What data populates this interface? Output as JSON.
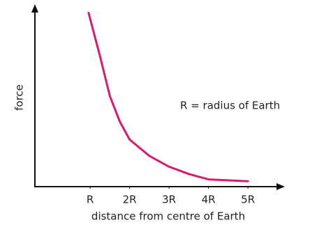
{
  "chart_data": {
    "type": "line",
    "annotation": "R = radius of Earth",
    "x_label": "distance from centre of Earth",
    "y_label": "force",
    "xlim": [
      -0.4,
      5.9
    ],
    "ylim": [
      0,
      1
    ],
    "xticks": [
      {
        "value": 1,
        "label": "R"
      },
      {
        "value": 2,
        "label": "2R"
      },
      {
        "value": 3,
        "label": "3R"
      },
      {
        "value": 4,
        "label": "4R"
      },
      {
        "value": 5,
        "label": "5R"
      }
    ],
    "series": [
      {
        "color": "#d81b6e",
        "x": [
          0.96,
          1.25,
          1.5,
          1.75,
          2,
          2.5,
          3,
          3.5,
          4,
          5
        ],
        "values": [
          0.96,
          0.72,
          0.5,
          0.36,
          0.26,
          0.17,
          0.11,
          0.07,
          0.04,
          0.03
        ]
      }
    ]
  }
}
